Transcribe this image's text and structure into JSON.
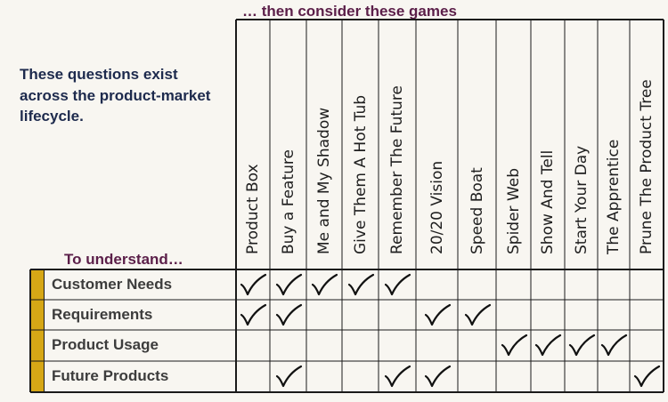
{
  "heading": "… then consider these games",
  "intro": "These questions exist across the product-market lifecycle.",
  "understand_label": "To understand…",
  "games": [
    "Product Box",
    "Buy a Feature",
    "Me and My Shadow",
    "Give Them A Hot Tub",
    "Remember The Future",
    "20/20 Vision",
    "Speed Boat",
    "Spider Web",
    "Show And Tell",
    "Start Your Day",
    "The Apprentice",
    "Prune The Product Tree"
  ],
  "rows": [
    {
      "label": "Customer Needs",
      "checks": [
        true,
        true,
        true,
        true,
        true,
        false,
        false,
        false,
        false,
        false,
        false,
        false
      ]
    },
    {
      "label": "Requirements",
      "checks": [
        true,
        true,
        false,
        false,
        false,
        true,
        true,
        false,
        false,
        false,
        false,
        false
      ]
    },
    {
      "label": "Product Usage",
      "checks": [
        false,
        false,
        false,
        false,
        false,
        false,
        false,
        true,
        true,
        true,
        true,
        false
      ]
    },
    {
      "label": "Future Products",
      "checks": [
        false,
        true,
        false,
        false,
        true,
        true,
        false,
        false,
        false,
        false,
        false,
        true
      ]
    }
  ],
  "colors": {
    "heading": "#5b1f49",
    "intro": "#1d2a4d",
    "accent_bar": "#d6a716"
  }
}
